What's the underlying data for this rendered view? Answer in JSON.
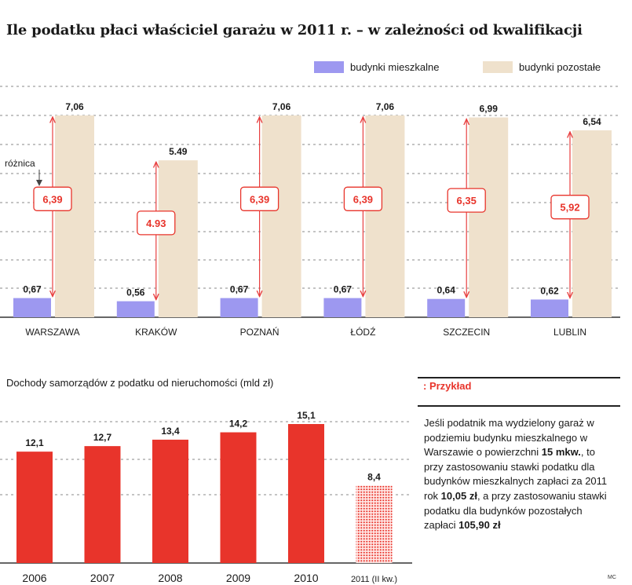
{
  "title": "Ile podatku płaci właściciel garażu w 2011 r. – w zależności od kwalifikacji",
  "colors": {
    "residential": "#9d98f0",
    "other": "#efe1cc",
    "accent": "#e8342b",
    "arrow": "#e84040"
  },
  "chart_data": [
    {
      "type": "bar",
      "title": "Ile podatku płaci właściciel garażu w 2011 r. – w zależności od kwalifikacji",
      "categories": [
        "WARSZAWA",
        "KRAKÓW",
        "POZNAŃ",
        "ŁÓDŹ",
        "SZCZECIN",
        "LUBLIN"
      ],
      "series": [
        {
          "name": "budynki mieszkalne",
          "values": [
            0.67,
            0.56,
            0.67,
            0.67,
            0.64,
            0.62
          ],
          "labels": [
            "0,67",
            "0,56",
            "0,67",
            "0,67",
            "0,64",
            "0,62"
          ]
        },
        {
          "name": "budynki pozostałe",
          "values": [
            7.06,
            5.49,
            7.06,
            7.06,
            6.99,
            6.54
          ],
          "labels": [
            "7,06",
            "5.49",
            "7,06",
            "7,06",
            "6,99",
            "6,54"
          ]
        }
      ],
      "difference": {
        "label": "różnica",
        "values": [
          6.39,
          4.93,
          6.39,
          6.39,
          6.35,
          5.92
        ],
        "labels": [
          "6,39",
          "4.93",
          "6,39",
          "6,39",
          "6,35",
          "5,92"
        ]
      },
      "ylim": [
        0,
        7.06
      ],
      "grid": true,
      "legend": "top-right"
    },
    {
      "type": "bar",
      "title": "Dochody samorządów z podatku od nieruchomości (mld zł)",
      "categories": [
        "2006",
        "2007",
        "2008",
        "2009",
        "2010",
        "2011 (II kw.)"
      ],
      "values": [
        12.1,
        12.7,
        13.4,
        14.2,
        15.1,
        8.4
      ],
      "value_labels": [
        "12,1",
        "12,7",
        "13,4",
        "14,2",
        "15,1",
        "8,4"
      ],
      "partial_last": true,
      "ylim": [
        0,
        15.1
      ],
      "grid": true
    }
  ],
  "example": {
    "heading": ": Przykład",
    "body_1": "Jeśli podatnik ma wydzielony garaż w podziemiu budynku mieszkalnego w Warszawie o powierzchni ",
    "bold_1": "15 mkw.",
    "body_2": ", to przy zastosowaniu stawki podatku dla budynków mieszkalnych zapłaci za 2011 rok ",
    "bold_2": "10,05 zł",
    "body_3": ", a przy zastosowaniu stawki podatku dla budynków pozostałych zapłaci ",
    "bold_3": "105,90 zł"
  },
  "credit": "MC"
}
